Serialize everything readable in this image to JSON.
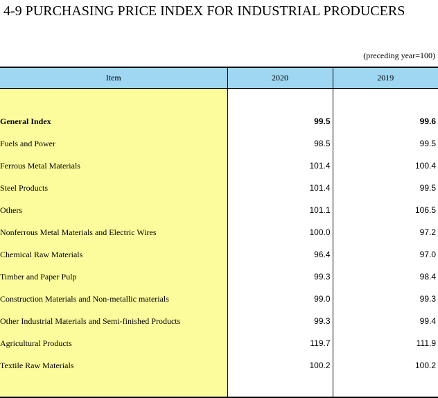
{
  "title": "4-9  PURCHASING PRICE INDEX FOR INDUSTRIAL PRODUCERS",
  "unit_note": "(preceding year=100)",
  "header": {
    "item": "Item",
    "col_2020": "2020",
    "col_2019": "2019"
  },
  "rows": [
    {
      "label": "General Index",
      "v2020": "99.5",
      "v2019": "99.6"
    },
    {
      "label": "Fuels and Power",
      "v2020": "98.5",
      "v2019": "99.5"
    },
    {
      "label": "Ferrous Metal Materials",
      "v2020": "101.4",
      "v2019": "100.4"
    },
    {
      "label": "Steel Products",
      "v2020": "101.4",
      "v2019": "99.5"
    },
    {
      "label": "Others",
      "v2020": "101.1",
      "v2019": "106.5"
    },
    {
      "label": "Nonferrous Metal Materials and Electric Wires",
      "v2020": "100.0",
      "v2019": "97.2"
    },
    {
      "label": "Chemical Raw Materials",
      "v2020": "96.4",
      "v2019": "97.0"
    },
    {
      "label": "Timber and Paper Pulp",
      "v2020": "99.3",
      "v2019": "98.4"
    },
    {
      "label": "Construction Materials and Non-metallic materials",
      "v2020": "99.0",
      "v2019": "99.3"
    },
    {
      "label": "Other Industrial Materials and Semi-finished Products",
      "v2020": "99.3",
      "v2019": "99.4"
    },
    {
      "label": "Agricultural Products",
      "v2020": "119.7",
      "v2019": "111.9"
    },
    {
      "label": "Textile Raw Materials",
      "v2020": "100.2",
      "v2019": "100.2"
    }
  ]
}
